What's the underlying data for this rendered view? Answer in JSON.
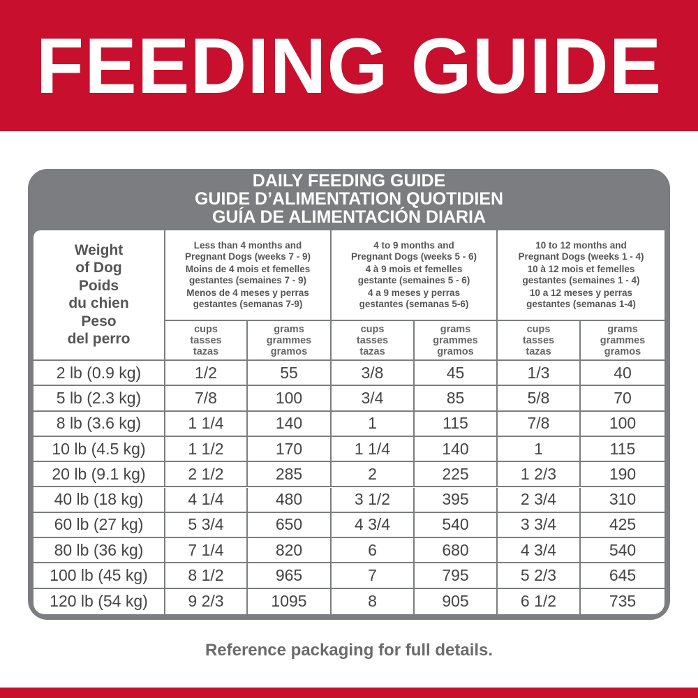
{
  "header": {
    "title": "FEEDING GUIDE"
  },
  "table": {
    "titles": [
      "DAILY FEEDING GUIDE",
      "GUIDE D’ALIMENTATION QUOTIDIEN",
      "GUÍA DE ALIMENTACIÓN DIARIA"
    ],
    "weight_header": [
      [
        "Weight",
        "of Dog"
      ],
      [
        "Poids",
        "du chien"
      ],
      [
        "Peso",
        "del perro"
      ]
    ],
    "groups": [
      [
        [
          "Less than 4 months and",
          "Pregnant Dogs (weeks 7 - 9)"
        ],
        [
          "Moins de 4 mois et femelles",
          "gestantes (semaines 7 - 9)"
        ],
        [
          "Menos de 4 meses y perras",
          "gestantes (semanas 7-9)"
        ]
      ],
      [
        [
          "4 to 9 months and",
          "Pregnant Dogs (weeks 5 - 6)"
        ],
        [
          "4 à 9 mois et femelles",
          "gestante (semaines 5 - 6)"
        ],
        [
          "4 a 9 meses y perras",
          "gestantes (semanas 5-6)"
        ]
      ],
      [
        [
          "10 to 12 months and",
          "Pregnant Dogs (weeks 1 - 4)"
        ],
        [
          "10 à 12 mois et femelles",
          "gestantes (semaines 1 - 4)"
        ],
        [
          "10 a 12 meses y perras",
          "gestantes (semanas 1-4)"
        ]
      ]
    ],
    "units": [
      [
        "cups",
        "tasses",
        "tazas"
      ],
      [
        "grams",
        "grammes",
        "gramos"
      ]
    ],
    "rows": [
      [
        "2 lb (0.9 kg)",
        "1/2",
        55,
        "3/8",
        45,
        "1/3",
        40
      ],
      [
        "5 lb (2.3 kg)",
        "7/8",
        100,
        "3/4",
        85,
        "5/8",
        70
      ],
      [
        "8 lb (3.6 kg)",
        "1 1/4",
        140,
        "1",
        115,
        "7/8",
        100
      ],
      [
        "10 lb (4.5 kg)",
        "1 1/2",
        170,
        "1 1/4",
        140,
        "1",
        115
      ],
      [
        "20 lb (9.1 kg)",
        "2 1/2",
        285,
        "2",
        225,
        "1 2/3",
        190
      ],
      [
        "40 lb (18 kg)",
        "4 1/4",
        480,
        "3 1/2",
        395,
        "2 3/4",
        310
      ],
      [
        "60 lb (27 kg)",
        "5 3/4",
        650,
        "4 3/4",
        540,
        "3 3/4",
        425
      ],
      [
        "80 lb (36 kg)",
        "7 1/4",
        820,
        "6",
        680,
        "4 3/4",
        540
      ],
      [
        "100 lb (45 kg)",
        "8 1/2",
        965,
        "7",
        795,
        "5 2/3",
        645
      ],
      [
        "120 lb (54 kg)",
        "9 2/3",
        1095,
        "8",
        905,
        "6 1/2",
        735
      ]
    ]
  },
  "footer": {
    "note": "Reference packaging for full details."
  }
}
